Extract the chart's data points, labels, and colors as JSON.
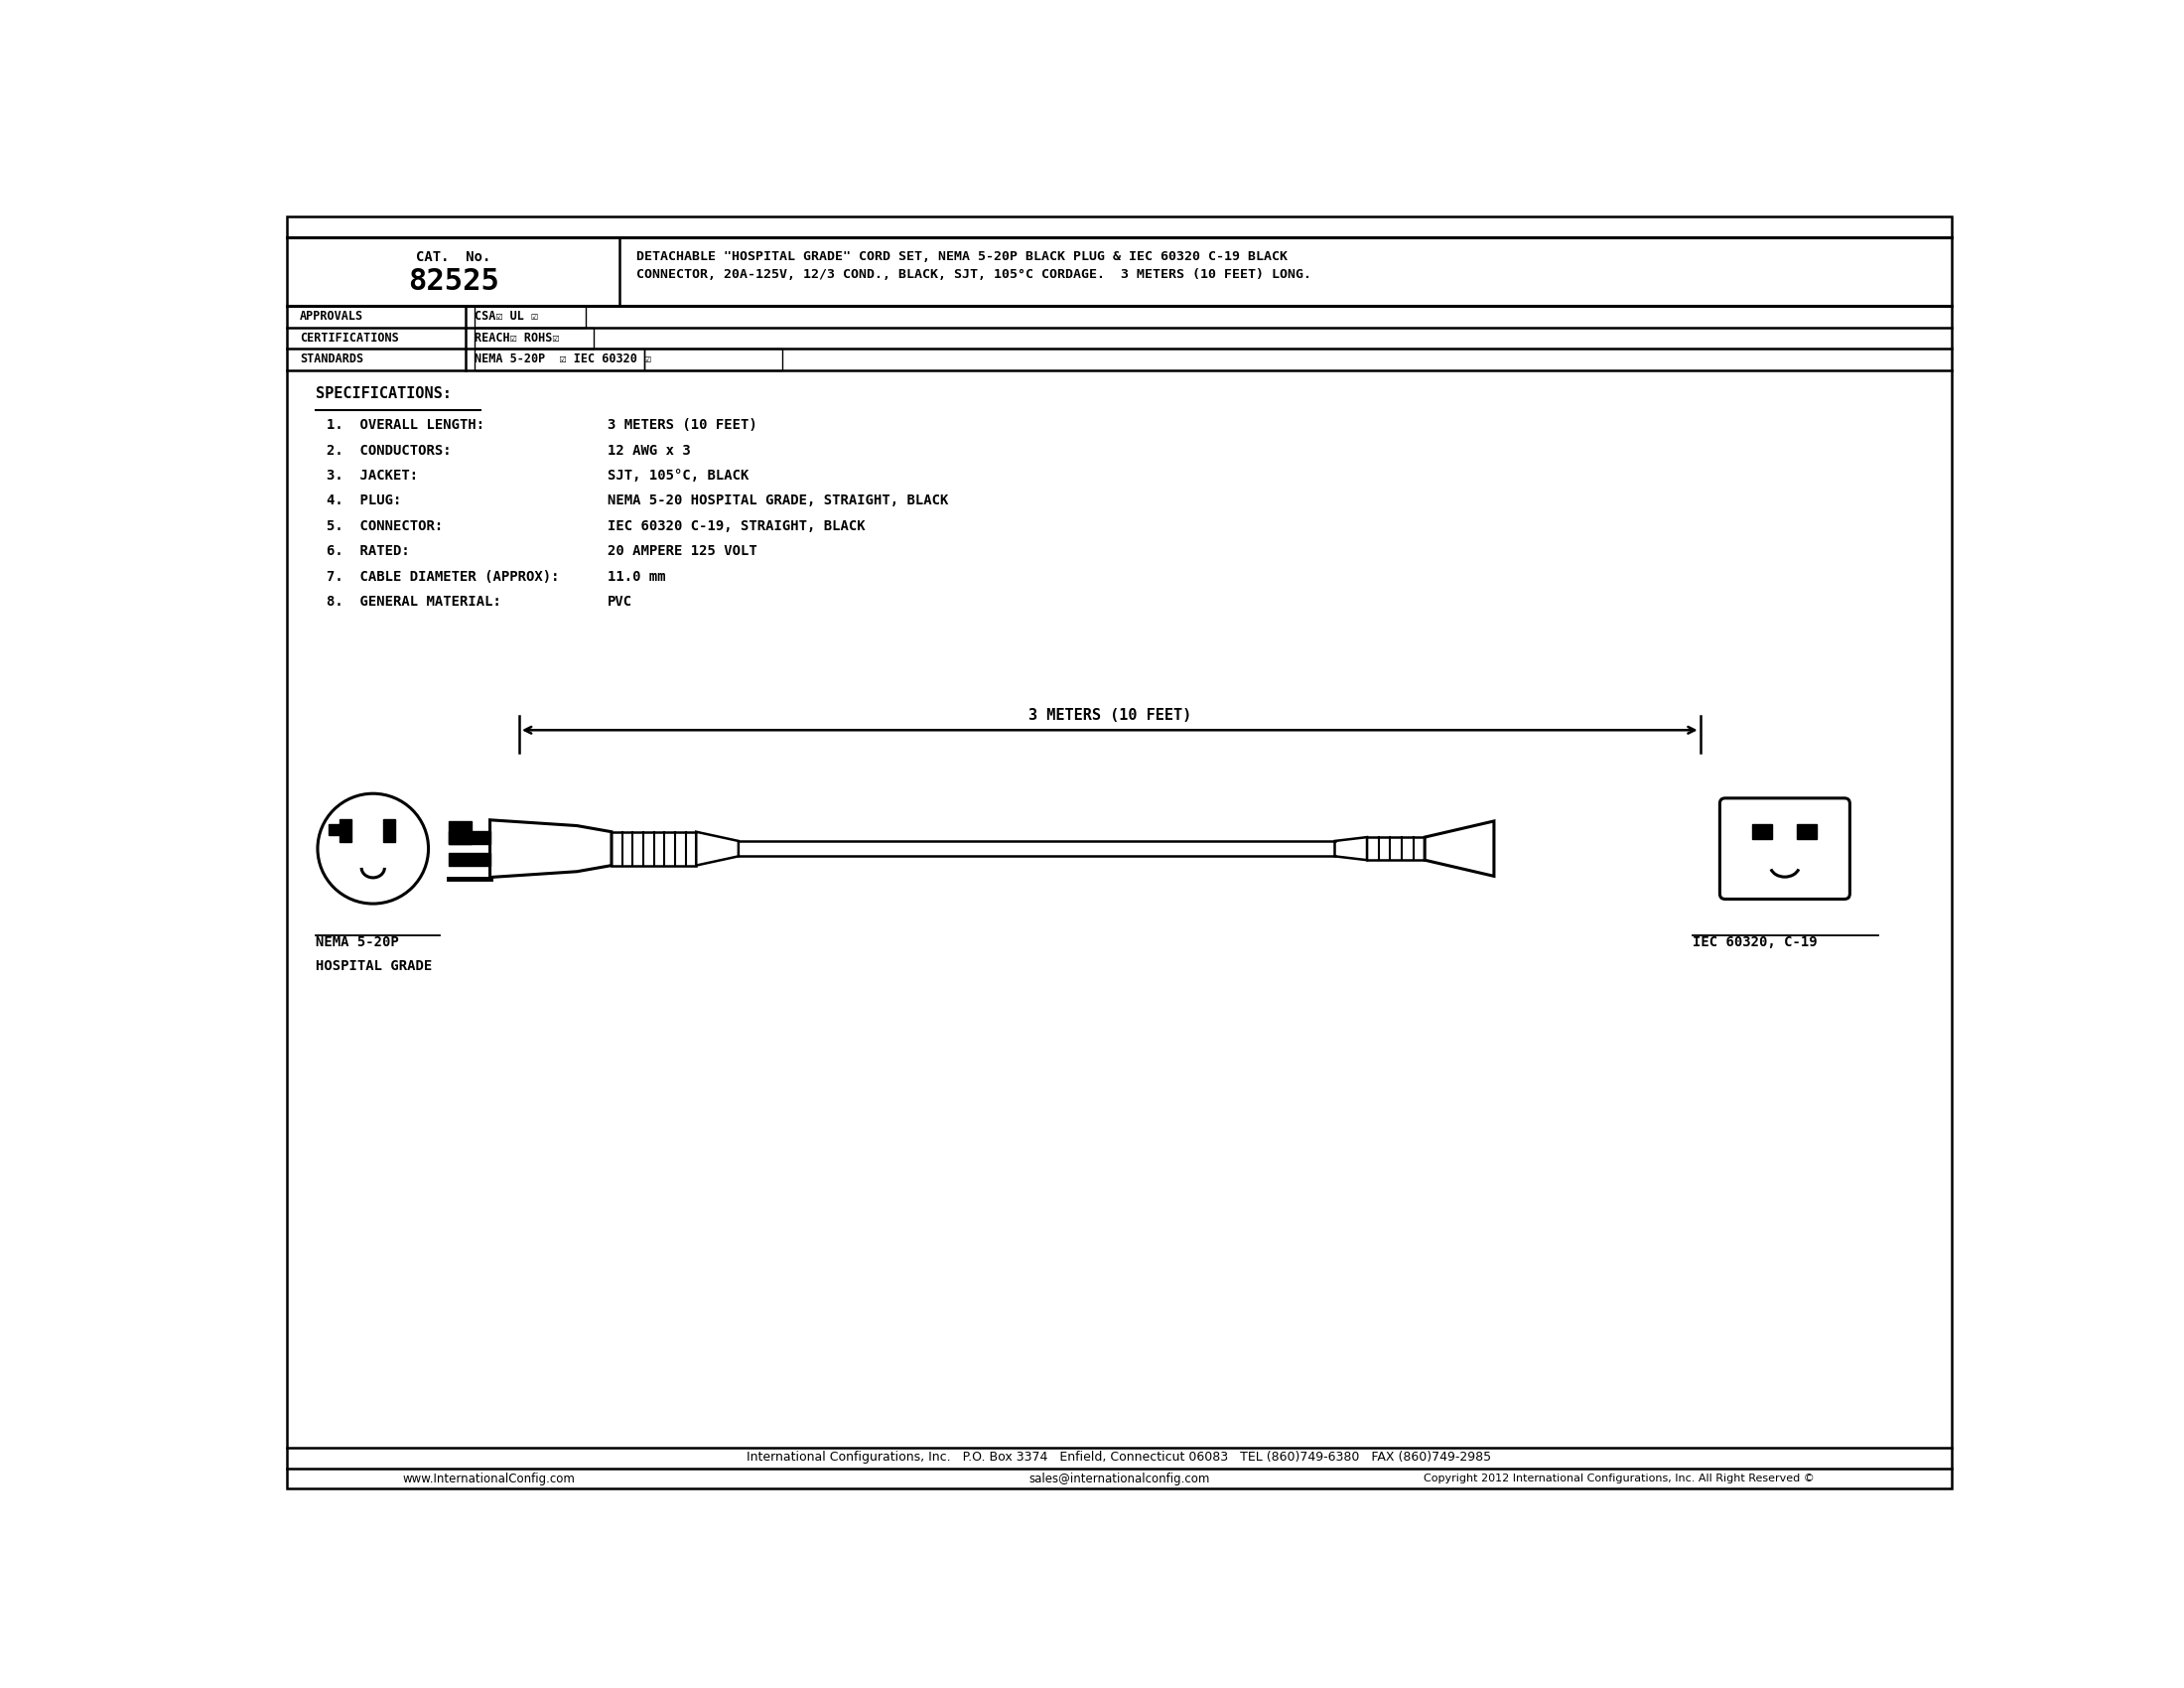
{
  "bg_color": "#ffffff",
  "border_color": "#000000",
  "title_cat_no": "CAT.  No.",
  "title_number": "82525",
  "title_description": "DETACHABLE \"HOSPITAL GRADE\" CORD SET, NEMA 5-20P BLACK PLUG & IEC 60320 C-19 BLACK\nCONNECTOR, 20A-125V, 12/3 COND., BLACK, SJT, 105°C CORDAGE.  3 METERS (10 FEET) LONG.",
  "approvals_label": "APPROVALS",
  "approvals_value": "CSA☑ UL ☑",
  "cert_label": "CERTIFICATIONS",
  "cert_value": "REACH☑ ROHS☑",
  "standards_label": "STANDARDS",
  "standards_value": "NEMA 5-20P  ☑ IEC 60320 ☑",
  "specs_title": "SPECIFICATIONS:",
  "specs": [
    [
      "1.  OVERALL LENGTH:",
      "3 METERS (10 FEET)"
    ],
    [
      "2.  CONDUCTORS:",
      "12 AWG x 3"
    ],
    [
      "3.  JACKET:",
      "SJT, 105°C, BLACK"
    ],
    [
      "4.  PLUG:",
      "NEMA 5-20 HOSPITAL GRADE, STRAIGHT, BLACK"
    ],
    [
      "5.  CONNECTOR:",
      "IEC 60320 C-19, STRAIGHT, BLACK"
    ],
    [
      "6.  RATED:",
      "20 AMPERE 125 VOLT"
    ],
    [
      "7.  CABLE DIAMETER (APPROX):",
      "11.0 mm"
    ],
    [
      "8.  GENERAL MATERIAL:",
      "PVC"
    ]
  ],
  "dim_label": "3 METERS (10 FEET)",
  "nema_label_line1": "NEMA 5-20P",
  "nema_label_line2": "HOSPITAL GRADE",
  "iec_label": "IEC 60320, C-19",
  "footer1": "International Configurations, Inc.   P.O. Box 3374   Enfield, Connecticut 06083   TEL (860)749-6380   FAX (860)749-2985",
  "footer2_left": "www.InternationalConfig.com",
  "footer2_mid": "sales@internationalconfig.com",
  "footer2_right": "Copyright 2012 International Configurations, Inc. All Right Reserved ©"
}
